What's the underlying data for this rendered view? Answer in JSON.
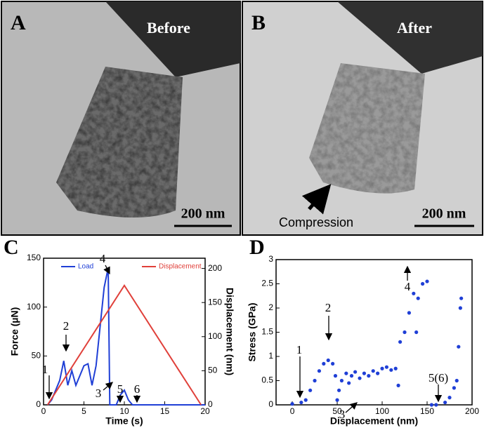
{
  "panels": [
    {
      "label": "A",
      "caption": "Before",
      "scale_bar": "200 nm"
    },
    {
      "label": "B",
      "caption": "After",
      "scale_bar": "200 nm",
      "annotation": "Compression"
    }
  ],
  "chart_data": [
    {
      "type": "line",
      "panel": "C",
      "xlabel": "Time (s)",
      "ylabel": "Force (µN)",
      "y2label": "Displacement (nm)",
      "xlim": [
        0,
        20
      ],
      "xticks": [
        0,
        5,
        10,
        15,
        20
      ],
      "ylim": [
        0,
        150
      ],
      "yticks": [
        0,
        50,
        100,
        150
      ],
      "y2lim": [
        0,
        215
      ],
      "y2ticks": [
        0,
        50,
        100,
        150,
        200
      ],
      "series": [
        {
          "name": "Load",
          "color": "#1f3fd6",
          "x": [
            0.5,
            1,
            1.5,
            2,
            2.5,
            3,
            3.5,
            4,
            4.5,
            5,
            5.5,
            6,
            6.5,
            7,
            7.5,
            8,
            8.2,
            9,
            9.5,
            10,
            10.5,
            11,
            20
          ],
          "values": [
            0,
            5,
            15,
            25,
            45,
            20,
            35,
            20,
            30,
            40,
            42,
            20,
            40,
            80,
            120,
            140,
            0,
            0,
            10,
            15,
            5,
            0,
            0
          ]
        },
        {
          "name": "Displacement",
          "color": "#e0403a",
          "axis": "y2",
          "x": [
            0.5,
            10,
            19.5
          ],
          "values": [
            0,
            175,
            0
          ]
        }
      ],
      "annotations": [
        "1",
        "2",
        "3",
        "4",
        "5",
        "6"
      ]
    },
    {
      "type": "scatter",
      "panel": "D",
      "xlabel": "Displacement (nm)",
      "ylabel": "Stress (GPa)",
      "xlim": [
        -18,
        200
      ],
      "xticks": [
        0,
        50,
        100,
        150,
        200
      ],
      "ylim": [
        0,
        3
      ],
      "yticks": [
        0,
        0.5,
        1,
        1.5,
        2,
        2.5,
        3
      ],
      "series": [
        {
          "color": "#1f3fd6",
          "x": [
            0,
            10,
            15,
            20,
            25,
            30,
            35,
            40,
            45,
            48,
            50,
            52,
            55,
            60,
            63,
            66,
            70,
            75,
            80,
            85,
            90,
            95,
            100,
            105,
            110,
            115,
            118,
            120,
            125,
            130,
            135,
            138,
            140,
            145,
            150,
            155,
            160,
            170,
            175,
            180,
            183,
            185,
            187,
            188
          ],
          "values": [
            0.02,
            0.05,
            0.1,
            0.3,
            0.5,
            0.7,
            0.85,
            0.92,
            0.85,
            0.6,
            0.1,
            0.3,
            0.5,
            0.65,
            0.45,
            0.6,
            0.68,
            0.55,
            0.65,
            0.6,
            0.7,
            0.65,
            0.75,
            0.78,
            0.72,
            0.75,
            0.4,
            1.3,
            1.5,
            1.9,
            2.3,
            1.5,
            2.2,
            2.5,
            2.55,
            0,
            0,
            0.05,
            0.15,
            0.35,
            0.5,
            1.2,
            2,
            2.2
          ]
        }
      ],
      "annotations": [
        "1",
        "2",
        "3",
        "4",
        "5(6)"
      ]
    }
  ]
}
